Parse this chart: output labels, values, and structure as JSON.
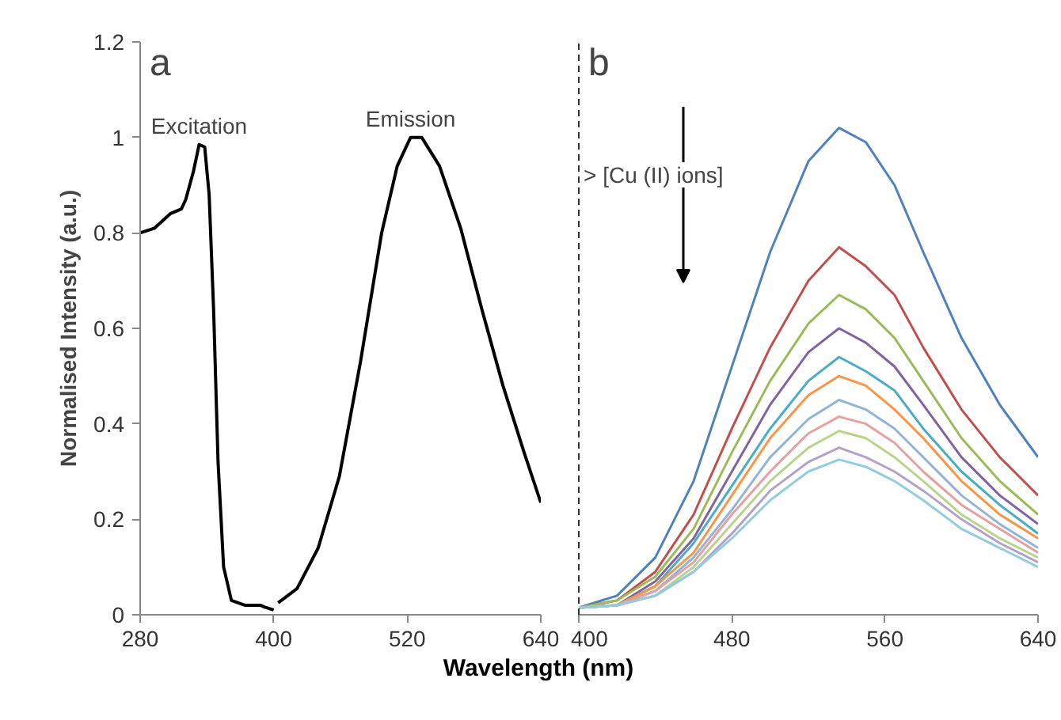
{
  "chart_data": [
    {
      "type": "line",
      "title": "a",
      "ylabel": "Normalised Intensity (a.u.)",
      "xlabel": "Wavelength (nm)",
      "xlim": [
        280,
        640
      ],
      "xticks": [
        280,
        400,
        520,
        640
      ],
      "ylim": [
        0,
        1.2
      ],
      "yticks": [
        0,
        0.2,
        0.4,
        0.6,
        0.8,
        1,
        1.2
      ],
      "grid": false,
      "annotations": [
        {
          "text": "Excitation",
          "x": 333,
          "y": 0.985
        },
        {
          "text": "Emission",
          "x": 523,
          "y": 1.0
        }
      ],
      "series": [
        {
          "color": "#000000",
          "x": [
            280,
            293,
            307,
            317,
            321,
            328,
            333,
            338,
            342,
            346,
            350,
            355,
            362,
            374,
            388,
            392,
            400
          ],
          "values": [
            0.8,
            0.81,
            0.84,
            0.85,
            0.87,
            0.93,
            0.985,
            0.98,
            0.88,
            0.64,
            0.32,
            0.1,
            0.03,
            0.02,
            0.02,
            0.016,
            0.01
          ]
        },
        {
          "color": "#000000",
          "x": [
            404,
            421,
            440,
            459,
            478,
            497,
            511,
            523,
            533,
            549,
            568,
            587,
            606,
            625,
            640
          ],
          "values": [
            0.025,
            0.055,
            0.14,
            0.29,
            0.53,
            0.8,
            0.94,
            1.0,
            1.0,
            0.94,
            0.81,
            0.64,
            0.48,
            0.34,
            0.235
          ]
        }
      ]
    },
    {
      "type": "line",
      "title": "b",
      "xlim": [
        400,
        640
      ],
      "xticks": [
        400,
        480,
        560,
        640
      ],
      "ylim": [
        0,
        1.2
      ],
      "tick_labels": "x",
      "grid": false,
      "x": [
        400,
        420,
        440,
        460,
        480,
        500,
        520,
        536,
        550,
        565,
        580,
        600,
        620,
        640
      ],
      "annotations": [
        "> [Cu (II) ions]"
      ],
      "series": [
        {
          "color": "#4f81bd",
          "values": [
            0.015,
            0.04,
            0.12,
            0.28,
            0.52,
            0.76,
            0.95,
            1.02,
            0.99,
            0.9,
            0.76,
            0.58,
            0.44,
            0.33
          ]
        },
        {
          "color": "#c0504d",
          "values": [
            0.015,
            0.03,
            0.09,
            0.21,
            0.39,
            0.56,
            0.7,
            0.77,
            0.73,
            0.67,
            0.56,
            0.43,
            0.33,
            0.25
          ]
        },
        {
          "color": "#9bbb59",
          "values": [
            0.015,
            0.03,
            0.08,
            0.18,
            0.34,
            0.49,
            0.61,
            0.67,
            0.64,
            0.58,
            0.49,
            0.37,
            0.28,
            0.21
          ]
        },
        {
          "color": "#8064a2",
          "values": [
            0.015,
            0.02,
            0.07,
            0.16,
            0.3,
            0.44,
            0.55,
            0.6,
            0.57,
            0.52,
            0.44,
            0.33,
            0.25,
            0.19
          ]
        },
        {
          "color": "#4bacc6",
          "values": [
            0.015,
            0.02,
            0.06,
            0.15,
            0.27,
            0.39,
            0.49,
            0.54,
            0.51,
            0.47,
            0.39,
            0.3,
            0.23,
            0.17
          ]
        },
        {
          "color": "#f79646",
          "values": [
            0.015,
            0.02,
            0.06,
            0.13,
            0.25,
            0.37,
            0.46,
            0.5,
            0.48,
            0.43,
            0.37,
            0.28,
            0.21,
            0.16
          ]
        },
        {
          "color": "#95b3d7",
          "values": [
            0.015,
            0.02,
            0.05,
            0.12,
            0.22,
            0.33,
            0.41,
            0.45,
            0.43,
            0.39,
            0.33,
            0.25,
            0.19,
            0.14
          ]
        },
        {
          "color": "#e6a0a0",
          "values": [
            0.015,
            0.02,
            0.05,
            0.11,
            0.21,
            0.3,
            0.38,
            0.415,
            0.4,
            0.36,
            0.3,
            0.23,
            0.18,
            0.13
          ]
        },
        {
          "color": "#b8d48c",
          "values": [
            0.015,
            0.02,
            0.04,
            0.1,
            0.19,
            0.28,
            0.35,
            0.385,
            0.37,
            0.33,
            0.28,
            0.21,
            0.16,
            0.12
          ]
        },
        {
          "color": "#b3a2c7",
          "values": [
            0.015,
            0.02,
            0.04,
            0.09,
            0.17,
            0.26,
            0.32,
            0.35,
            0.33,
            0.3,
            0.26,
            0.2,
            0.15,
            0.11
          ]
        },
        {
          "color": "#93cddd",
          "values": [
            0.015,
            0.02,
            0.04,
            0.09,
            0.16,
            0.24,
            0.3,
            0.325,
            0.31,
            0.28,
            0.24,
            0.18,
            0.14,
            0.1
          ]
        }
      ]
    }
  ]
}
